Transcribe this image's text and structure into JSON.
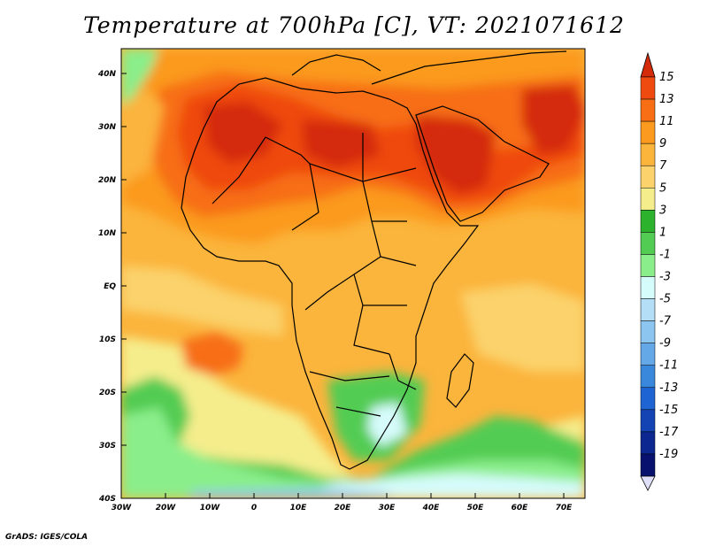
{
  "title": "Temperature at 700hPa [C], VT: 2021071612",
  "footer": "GrADS: IGES/COLA",
  "map": {
    "lon_range": [
      -30,
      75
    ],
    "lat_range": [
      -40,
      45
    ],
    "lon_ticks": [
      "30W",
      "20W",
      "10W",
      "0",
      "10E",
      "20E",
      "30E",
      "40E",
      "50E",
      "60E",
      "70E"
    ],
    "lat_ticks": [
      "40N",
      "30N",
      "20N",
      "10N",
      "EQ",
      "10S",
      "20S",
      "30S",
      "40S"
    ]
  },
  "colorbar": {
    "labels": [
      "15",
      "13",
      "11",
      "9",
      "7",
      "5",
      "3",
      "1",
      "-1",
      "-3",
      "-5",
      "-7",
      "-9",
      "-11",
      "-13",
      "-15",
      "-17",
      "-19"
    ],
    "colors": [
      "#d42c0a",
      "#ef4a10",
      "#f76e14",
      "#fb9a1e",
      "#fbb43c",
      "#fbd26c",
      "#f5ed8c",
      "#2cb22c",
      "#52cc52",
      "#8aee8a",
      "#d6fbfb",
      "#b3def5",
      "#8cc5f0",
      "#64a8e8",
      "#3a88dc",
      "#1e64d2",
      "#1444b4",
      "#0c2890",
      "#08126e"
    ],
    "top_color": "#d42c0a",
    "bottom_color": "#e0e0f8"
  }
}
